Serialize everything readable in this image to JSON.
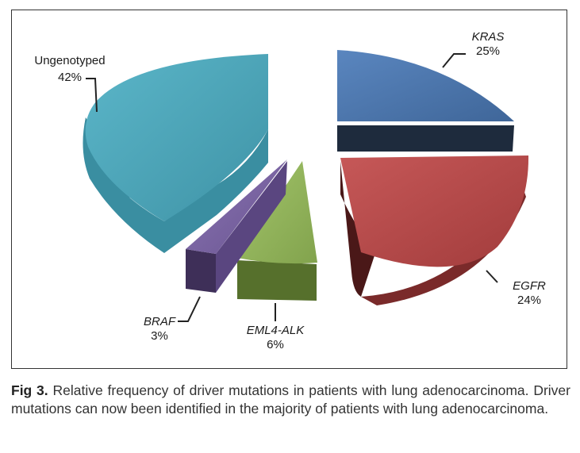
{
  "chart_data": {
    "type": "pie",
    "title": "",
    "slices": [
      {
        "label": "KRAS",
        "value": 25,
        "pct_text": "25%",
        "color": "#4f78ad",
        "italic": true
      },
      {
        "label": "EGFR",
        "value": 24,
        "pct_text": "24%",
        "color": "#b54a4a",
        "italic": true
      },
      {
        "label": "EML4-ALK",
        "value": 6,
        "pct_text": "6%",
        "color": "#92b55a",
        "italic": true
      },
      {
        "label": "BRAF",
        "value": 3,
        "pct_text": "3%",
        "color": "#7a62a2",
        "italic": true
      },
      {
        "label": "Ungenotyped",
        "value": 42,
        "pct_text": "42%",
        "color": "#4aa2b6",
        "italic": false
      }
    ],
    "exploded": true,
    "style": "3d"
  },
  "caption": {
    "label": "Fig 3.",
    "text": " Relative frequency of driver mutations in patients with lung adenocarcinoma. Driver mutations can now been identified in the majority of patients with lung adenocarcinoma."
  }
}
